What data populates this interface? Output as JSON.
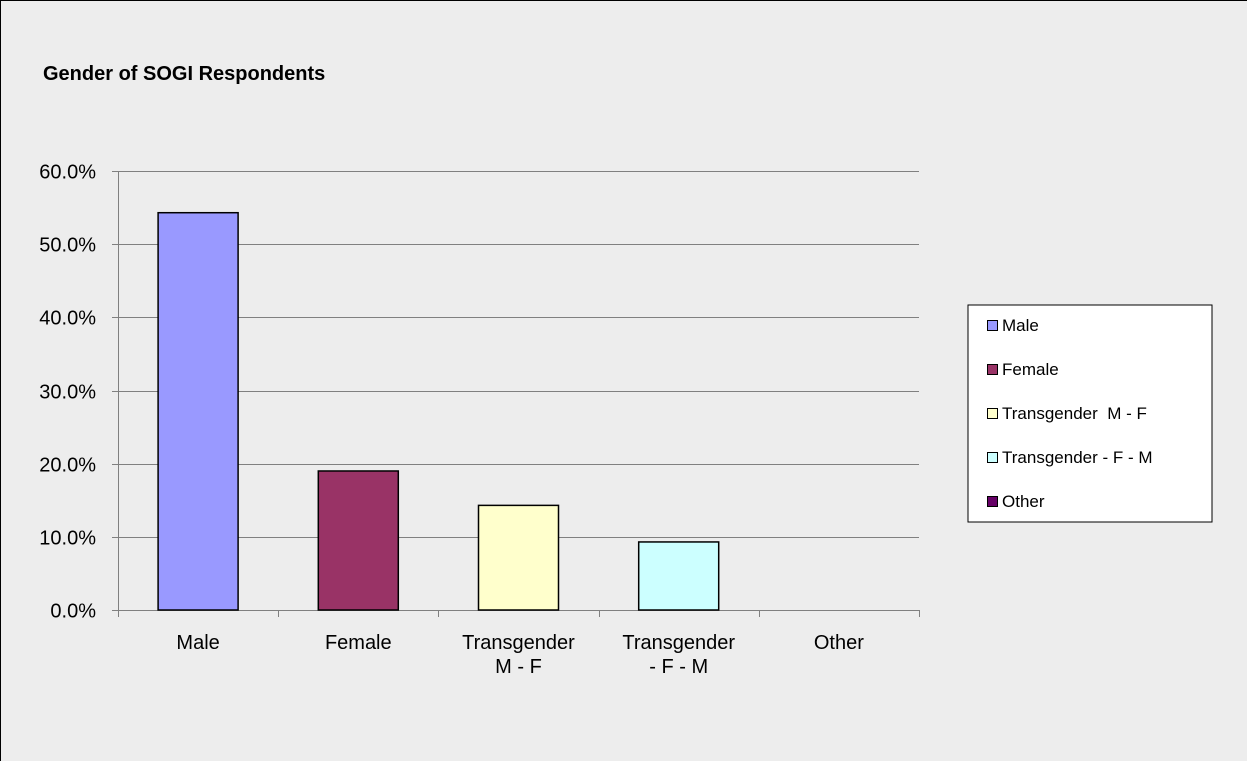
{
  "chart_data": {
    "type": "bar",
    "title": "Gender of SOGI Respondents",
    "xlabel": "",
    "ylabel": "",
    "categories": [
      "Male",
      "Female",
      "Transgender M - F",
      "Transgender - F - M",
      "Other"
    ],
    "category_lines": [
      [
        "Male"
      ],
      [
        "Female"
      ],
      [
        "Transgender",
        "M - F"
      ],
      [
        "Transgender",
        "- F - M"
      ],
      [
        "Other"
      ]
    ],
    "values": [
      54.3,
      19.0,
      14.3,
      9.3,
      0.0
    ],
    "colors": [
      "#9999ff",
      "#993366",
      "#ffffcc",
      "#ccffff",
      "#660066"
    ],
    "ylim": [
      0,
      60
    ],
    "yticks": [
      0,
      10,
      20,
      30,
      40,
      50,
      60
    ],
    "ytick_labels": [
      "0.0%",
      "10.0%",
      "20.0%",
      "30.0%",
      "40.0%",
      "50.0%",
      "60.0%"
    ],
    "grid": true,
    "legend_position": "right",
    "legend": [
      "Male",
      "Female",
      "Transgender  M - F",
      "Transgender - F - M",
      "Other"
    ]
  }
}
